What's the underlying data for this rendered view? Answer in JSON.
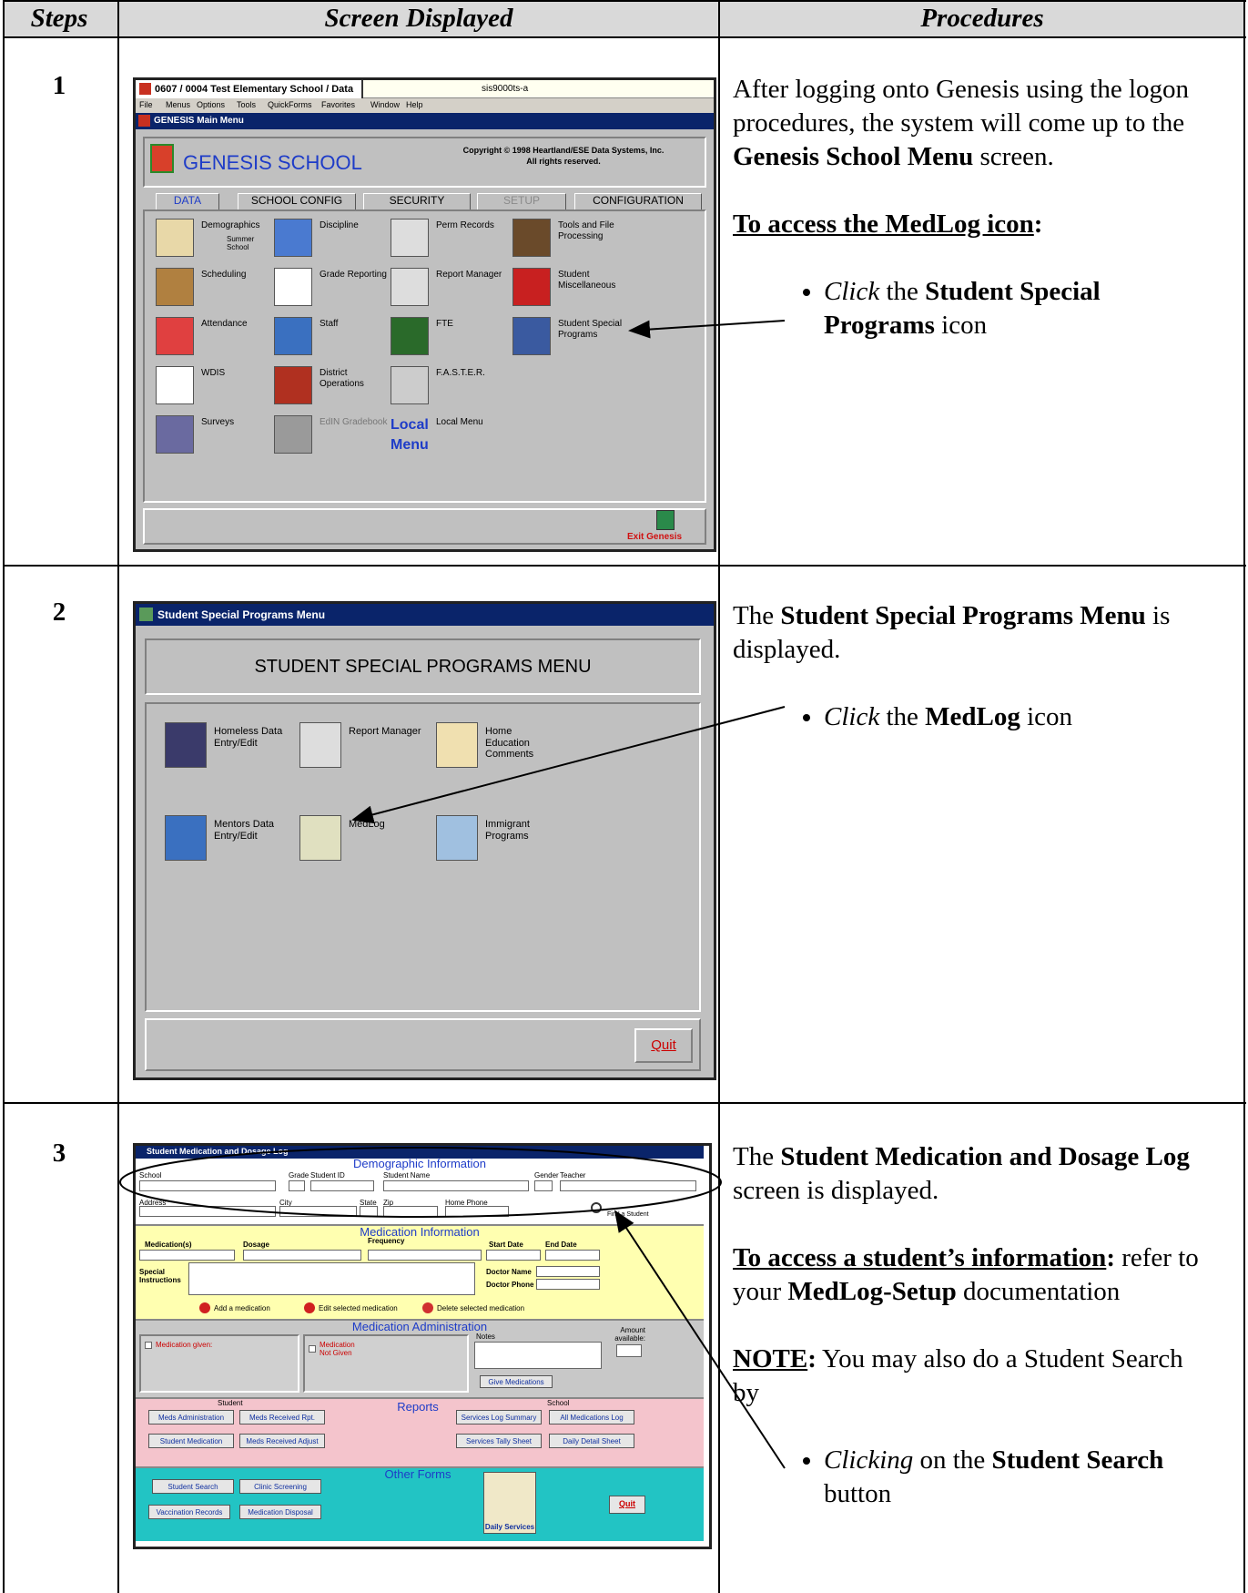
{
  "table": {
    "headers": [
      "Steps",
      "Screen Displayed",
      "Procedures"
    ],
    "rows": [
      {
        "step": "1",
        "procedures": [
          [
            "After logging onto Genesis using the logon procedures, the system will come up to the ",
            "Genesis School Menu",
            " screen."
          ],
          [
            "To access the MedLog icon",
            ":"
          ],
          [
            "Click",
            " the ",
            "Student Special Programs",
            " icon"
          ]
        ],
        "screen": {
          "app_title": "0607 / 0004 Test Elementary School / Data",
          "server": "sis9000ts-a",
          "menu": [
            "File",
            "Menus",
            "Options",
            "Tools",
            "QuickForms",
            "Favorites",
            "Window",
            "Help"
          ],
          "window_title": "GENESIS Main Menu",
          "app_name": "GENESIS SCHOOL",
          "copyright": [
            "Copyright © 1998 Heartland/ESE Data Systems, Inc.",
            "All rights reserved."
          ],
          "tabs": [
            "DATA",
            "SCHOOL CONFIG",
            "SECURITY",
            "SETUP",
            "CONFIGURATION"
          ],
          "icons": [
            "Demographics",
            "Discipline",
            "Perm Records",
            "Tools and File Processing",
            "Scheduling",
            "Grade Reporting",
            "Report Manager",
            "Student Miscellaneous",
            "Attendance",
            "Staff",
            "FTE",
            "Student Special Programs",
            "WDIS",
            "District Operations",
            "F.A.S.T.E.R.",
            "Surveys",
            "EdIN Gradebook",
            "Local Menu"
          ],
          "summer_school": "Summer School",
          "local_menu_logo": "Local Menu",
          "exit": "Exit Genesis"
        }
      },
      {
        "step": "2",
        "procedures": [
          [
            "The ",
            "Student Special Programs Menu",
            " is displayed."
          ],
          [
            "Click",
            " the ",
            "MedLog",
            " icon"
          ]
        ],
        "screen": {
          "window_title": "Student Special Programs Menu",
          "heading": "STUDENT SPECIAL PROGRAMS MENU",
          "icons": [
            "Homeless Data Entry/Edit",
            "Report Manager",
            "Home Education Comments",
            "Mentors Data Entry/Edit",
            "MedLog",
            "Immigrant Programs"
          ],
          "quit": "Quit"
        }
      },
      {
        "step": "3",
        "procedures": [
          [
            "The ",
            "Student Medication and Dosage Log",
            " screen is displayed."
          ],
          [
            "To access a student’s information",
            ":",
            " refer to your ",
            "MedLog-Setup",
            " documentation"
          ],
          [
            "NOTE",
            ":",
            "  You may also do a Student Search by"
          ],
          [
            "Clicking",
            " on the ",
            "Student Search",
            " button"
          ]
        ],
        "screen": {
          "title": "Student Medication and Dosage Log",
          "demographic": {
            "heading": "Demographic Information",
            "fields": [
              "School",
              "Grade",
              "Student ID",
              "Student Name",
              "Gender",
              "Teacher",
              "Address",
              "City",
              "State",
              "Zip",
              "Home Phone"
            ],
            "find": "Find a Student"
          },
          "medication": {
            "heading": "Medication Information",
            "fields": [
              "Medication(s)",
              "Dosage",
              "Frequency",
              "Start Date",
              "End Date",
              "Special Instructions",
              "Doctor Name",
              "Doctor Phone"
            ],
            "actions": [
              "Add a medication",
              "Edit selected medication",
              "Delete selected medication"
            ]
          },
          "administration": {
            "heading": "Medication Administration",
            "given": "Medication given:",
            "not_given": "Medication Not Given",
            "notes": "Notes",
            "amount": "Amount available:",
            "button": "Give Medications"
          },
          "reports": {
            "heading": "Reports",
            "student": "Student",
            "school": "School",
            "buttons": [
              "Meds Administration",
              "Meds Received Rpt.",
              "Student Medication",
              "Meds Received Adjust",
              "Services Log Summary",
              "All Medications Log",
              "Services Tally Sheet",
              "Daily Detail Sheet"
            ]
          },
          "other_forms": {
            "heading": "Other Forms",
            "buttons": [
              "Student Search",
              "Clinic Screening",
              "Vaccination Records",
              "Medication Disposal"
            ],
            "daily_services": "Daily Services",
            "quit": "Quit"
          }
        }
      }
    ]
  }
}
